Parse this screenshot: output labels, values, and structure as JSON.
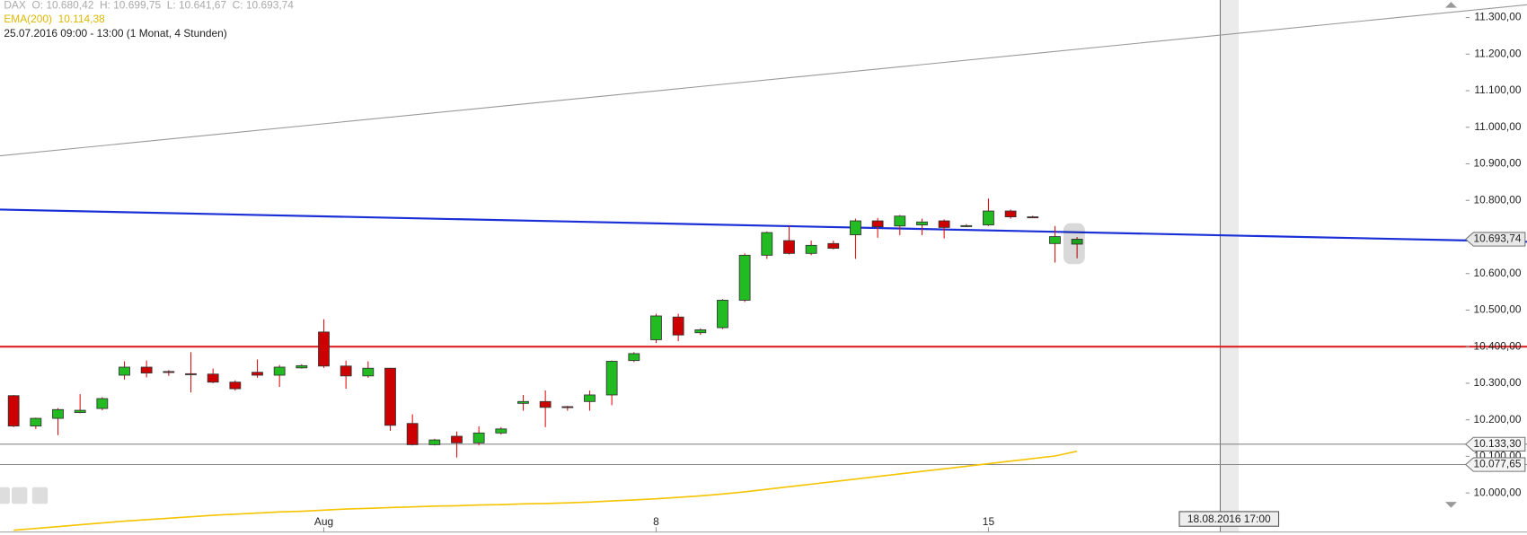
{
  "chart_data": {
    "type": "candlestick",
    "header": {
      "symbol_line": "DAX  O: 10.680,42  H: 10.699,75  L: 10.641,67  C: 10.693,74",
      "ema_line": "EMA(200)  10.114,38",
      "period_line": "25.07.2016 09:00 - 13:00 (1 Monat, 4 Stunden)"
    },
    "categories": [
      null,
      null,
      null,
      null,
      null,
      null,
      null,
      null,
      null,
      null,
      null,
      null,
      null,
      null,
      "Aug",
      null,
      null,
      null,
      null,
      null,
      null,
      null,
      null,
      null,
      null,
      null,
      null,
      null,
      null,
      "8",
      null,
      null,
      null,
      null,
      null,
      null,
      null,
      null,
      null,
      null,
      null,
      null,
      null,
      null,
      "15",
      null,
      null,
      null,
      null
    ],
    "open": [
      10266,
      10183,
      10204,
      10220,
      10231,
      10322,
      10344,
      10332,
      10326,
      10325,
      10303,
      10330,
      10322,
      10342,
      10440,
      10347,
      10320,
      10341,
      10190,
      10132,
      10155,
      10137,
      10164,
      10245,
      10250,
      10236,
      10250,
      10268,
      10362,
      10419,
      10481,
      10438,
      10452,
      10527,
      10650,
      10690,
      10655,
      10682,
      10706,
      10744,
      10730,
      10733,
      10744,
      10730,
      10733,
      10771,
      10755,
      10682,
      10680.42
    ],
    "high": [
      10268,
      10206,
      10232,
      10270,
      10262,
      10360,
      10362,
      10336,
      10385,
      10340,
      10308,
      10365,
      10350,
      10352,
      10475,
      10362,
      10360,
      10342,
      10215,
      10148,
      10168,
      10182,
      10180,
      10268,
      10280,
      10238,
      10280,
      10362,
      10385,
      10490,
      10490,
      10450,
      10530,
      10655,
      10715,
      10730,
      10690,
      10690,
      10750,
      10752,
      10760,
      10750,
      10748,
      10735,
      10805,
      10775,
      10758,
      10730,
      10699.75
    ],
    "low": [
      10180,
      10175,
      10158,
      10218,
      10226,
      10310,
      10316,
      10320,
      10275,
      10300,
      10280,
      10315,
      10290,
      10340,
      10342,
      10285,
      10315,
      10170,
      10130,
      10130,
      10097,
      10130,
      10160,
      10225,
      10180,
      10225,
      10225,
      10240,
      10358,
      10410,
      10415,
      10432,
      10448,
      10522,
      10640,
      10652,
      10650,
      10666,
      10640,
      10698,
      10705,
      10705,
      10696,
      10727,
      10730,
      10750,
      10752,
      10630,
      10641.67
    ],
    "close": [
      10183,
      10204,
      10228,
      10226,
      10258,
      10344,
      10328,
      10330,
      10325,
      10303,
      10285,
      10322,
      10344,
      10348,
      10347,
      10320,
      10341,
      10185,
      10132,
      10145,
      10137,
      10164,
      10175,
      10250,
      10234,
      10235,
      10268,
      10360,
      10381,
      10484,
      10432,
      10446,
      10527,
      10650,
      10712,
      10655,
      10677,
      10669,
      10744,
      10728,
      10757,
      10741,
      10726,
      10731,
      10771,
      10755,
      10754,
      10701,
      10693.74
    ],
    "up_color": "#22bb22",
    "down_color": "#cc0000",
    "wick_color": "#dd1111",
    "ema": {
      "color": "#f5c400",
      "values": [
        9898,
        9903,
        9908,
        9913,
        9918,
        9923,
        9927,
        9931,
        9935,
        9939,
        9942,
        9945,
        9948,
        9950,
        9953,
        9956,
        9958,
        9960,
        9962,
        9964,
        9965,
        9967,
        9968,
        9970,
        9971,
        9973,
        9975,
        9978,
        9981,
        9984,
        9988,
        9992,
        9997,
        10003,
        10010,
        10017,
        10024,
        10031,
        10038,
        10045,
        10052,
        10059,
        10066,
        10073,
        10080,
        10087,
        10094,
        10101,
        10114
      ]
    },
    "trendlines": [
      {
        "color": "#999999",
        "values": [
          10922,
          11335
        ]
      },
      {
        "color": "#1a2fd6",
        "values": [
          10775,
          10687
        ]
      },
      {
        "color": "#dd2222",
        "values": [
          10400,
          10400
        ]
      }
    ],
    "hlines": [
      {
        "color": "#888888",
        "value": 10133.3,
        "label": "10.133,30"
      },
      {
        "color": "#888888",
        "value": 10077.65,
        "label": "10.077,65"
      }
    ],
    "last_badge": {
      "value": 10693.74,
      "label": "10.693,74"
    },
    "ylim": [
      9885,
      11348
    ],
    "yticks": [
      {
        "value": 10000,
        "label": "10.000,00"
      },
      {
        "value": 10100,
        "label": "10.100,00"
      },
      {
        "value": 10200,
        "label": "10.200,00"
      },
      {
        "value": 10300,
        "label": "10.300,00"
      },
      {
        "value": 10400,
        "label": "10.400,00"
      },
      {
        "value": 10500,
        "label": "10.500,00"
      },
      {
        "value": 10600,
        "label": "10.600,00"
      },
      {
        "value": 10800,
        "label": "10.800,00"
      },
      {
        "value": 10900,
        "label": "10.900,00"
      },
      {
        "value": 11000,
        "label": "11.000,00"
      },
      {
        "value": 11100,
        "label": "11.100,00"
      },
      {
        "value": 11200,
        "label": "11.200,00"
      },
      {
        "value": 11300,
        "label": "11.300,00"
      }
    ],
    "crosshair_label": "18.08.2016 17:00"
  }
}
